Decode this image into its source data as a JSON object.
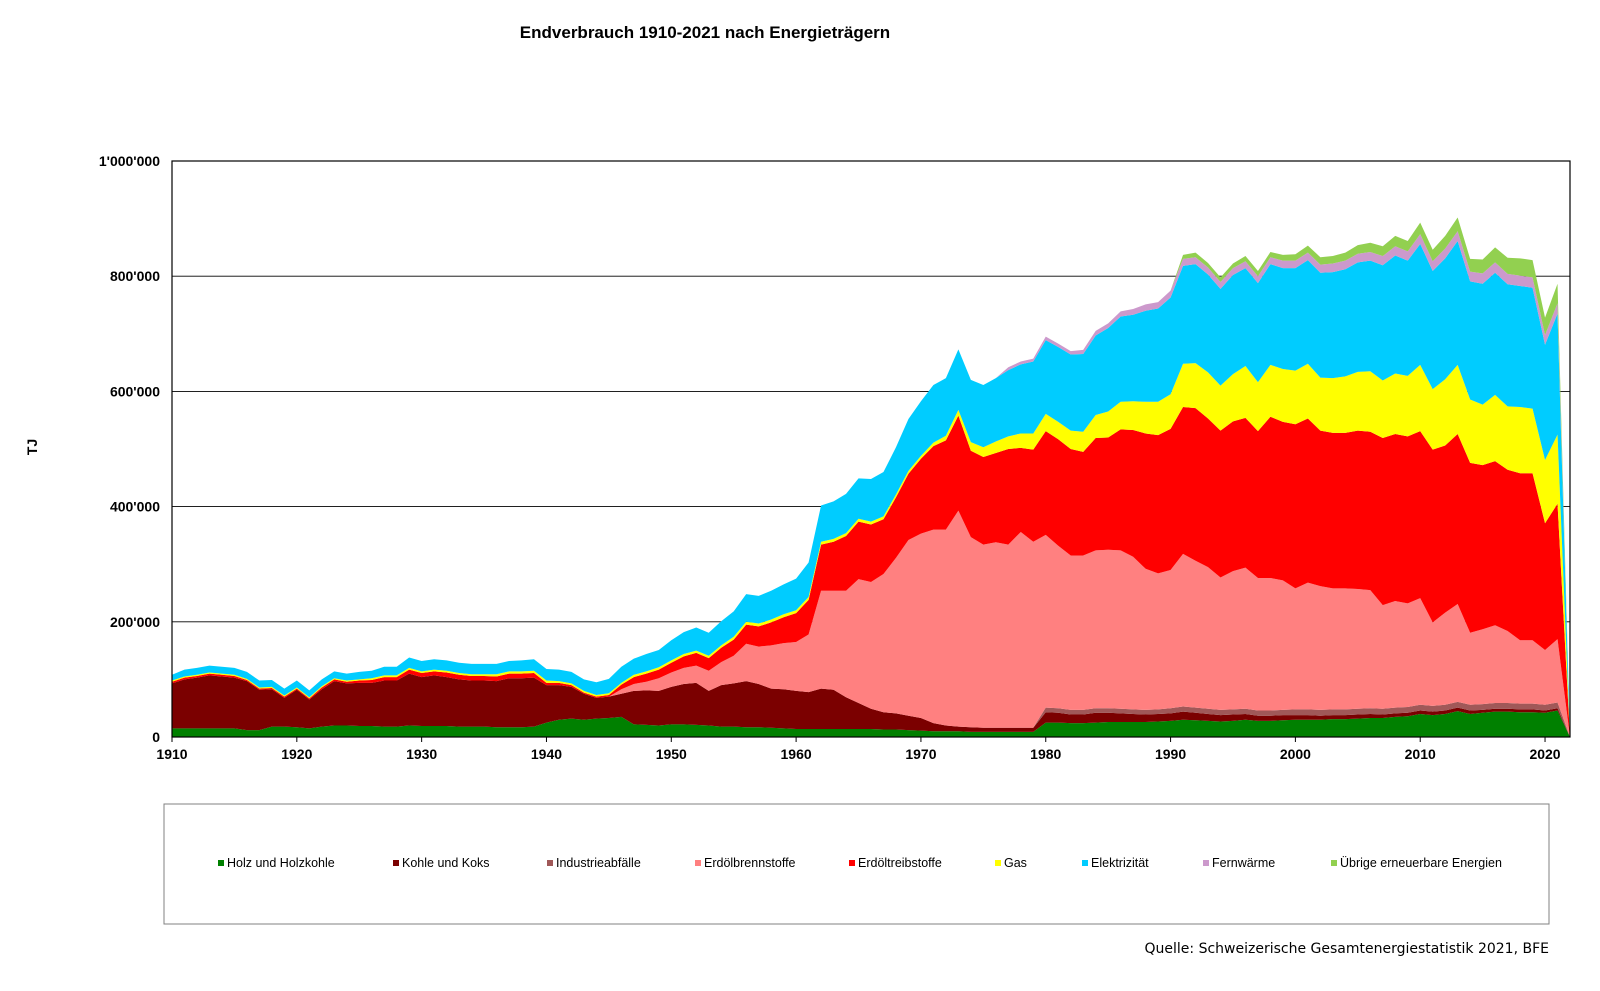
{
  "chart_data": {
    "type": "area",
    "stacked": true,
    "title": "Endverbrauch 1910-2021 nach Energieträgern",
    "ylabel": "TJ",
    "xlabel": "",
    "source": "Quelle: Schweizerische Gesamtenergiestatistik 2021, BFE",
    "ylim": [
      0,
      1000000
    ],
    "xlim": [
      1910,
      2022
    ],
    "ytick_values": [
      0,
      200000,
      400000,
      600000,
      800000,
      1000000
    ],
    "ytick_labels": [
      "0",
      "200'000",
      "400'000",
      "600'000",
      "800'000",
      "1'000'000"
    ],
    "xticks": [
      "1910",
      "1920",
      "1930",
      "1940",
      "1950",
      "1960",
      "1970",
      "1980",
      "1990",
      "2000",
      "2010",
      "2020"
    ],
    "grid": "horizontal",
    "legend_position": "bottom",
    "x": [
      1910,
      1911,
      1912,
      1913,
      1914,
      1915,
      1916,
      1917,
      1918,
      1919,
      1920,
      1921,
      1922,
      1923,
      1924,
      1925,
      1926,
      1927,
      1928,
      1929,
      1930,
      1931,
      1932,
      1933,
      1934,
      1935,
      1936,
      1937,
      1938,
      1939,
      1940,
      1941,
      1942,
      1943,
      1944,
      1945,
      1946,
      1947,
      1948,
      1949,
      1950,
      1951,
      1952,
      1953,
      1954,
      1955,
      1956,
      1957,
      1958,
      1959,
      1960,
      1961,
      1962,
      1963,
      1964,
      1965,
      1966,
      1967,
      1968,
      1969,
      1970,
      1971,
      1972,
      1973,
      1974,
      1975,
      1976,
      1977,
      1978,
      1979,
      1980,
      1981,
      1982,
      1983,
      1984,
      1985,
      1986,
      1987,
      1988,
      1989,
      1990,
      1991,
      1992,
      1993,
      1994,
      1995,
      1996,
      1997,
      1998,
      1999,
      2000,
      2001,
      2002,
      2003,
      2004,
      2005,
      2006,
      2007,
      2008,
      2009,
      2010,
      2011,
      2012,
      2013,
      2014,
      2015,
      2016,
      2017,
      2018,
      2019,
      2020,
      2021,
      2022
    ],
    "series": [
      {
        "name": "Holz und  Holzkohle",
        "color": "#008000",
        "values": [
          15000,
          15000,
          15000,
          15000,
          15000,
          15000,
          12000,
          12000,
          18000,
          18000,
          17000,
          15000,
          18000,
          20000,
          20000,
          19000,
          19000,
          18000,
          18000,
          20000,
          19000,
          19000,
          19000,
          18000,
          18000,
          18000,
          17000,
          17000,
          17000,
          18000,
          25000,
          30000,
          32000,
          30000,
          32000,
          33000,
          35000,
          22000,
          21000,
          20000,
          22000,
          22000,
          21000,
          20000,
          18000,
          18000,
          17000,
          17000,
          16000,
          15000,
          14000,
          14000,
          14000,
          14000,
          14000,
          14000,
          14000,
          13000,
          13000,
          12000,
          11000,
          10000,
          10000,
          10000,
          9000,
          9000,
          9000,
          9000,
          9000,
          9000,
          25000,
          25000,
          24000,
          24000,
          25000,
          26000,
          26000,
          26000,
          26000,
          27000,
          28000,
          30000,
          29000,
          28000,
          27000,
          28000,
          30000,
          28000,
          28000,
          29000,
          30000,
          30000,
          30000,
          31000,
          31000,
          32000,
          33000,
          33000,
          35000,
          36000,
          40000,
          38000,
          40000,
          45000,
          40000,
          42000,
          44000,
          44000,
          43000,
          43000,
          42000,
          46000,
          0
        ]
      },
      {
        "name": "Kohle  und Koks",
        "color": "#7b0000",
        "values": [
          78000,
          85000,
          88000,
          92000,
          90000,
          88000,
          85000,
          70000,
          65000,
          50000,
          65000,
          50000,
          65000,
          77000,
          73000,
          75000,
          75000,
          80000,
          80000,
          90000,
          85000,
          88000,
          85000,
          82000,
          80000,
          80000,
          80000,
          85000,
          85000,
          85000,
          65000,
          60000,
          55000,
          45000,
          36000,
          37000,
          40000,
          58000,
          60000,
          60000,
          65000,
          70000,
          73000,
          60000,
          72000,
          75000,
          80000,
          75000,
          68000,
          68000,
          66000,
          64000,
          70000,
          68000,
          55000,
          45000,
          35000,
          30000,
          28000,
          25000,
          22000,
          14000,
          10000,
          8000,
          8000,
          7000,
          7000,
          7000,
          7000,
          7000,
          18000,
          17000,
          15000,
          15000,
          17000,
          16000,
          15000,
          14000,
          13000,
          13000,
          13000,
          14000,
          13000,
          12000,
          11000,
          11000,
          10000,
          9000,
          9000,
          9000,
          8000,
          8000,
          7000,
          7000,
          7000,
          7000,
          7000,
          6000,
          6000,
          6000,
          6000,
          6000,
          6000,
          6000,
          6000,
          5000,
          5000,
          5000,
          5000,
          5000,
          4000,
          4000,
          0
        ]
      },
      {
        "name": "Industrieabfälle",
        "color": "#a05858",
        "values": [
          0,
          0,
          0,
          0,
          0,
          0,
          0,
          0,
          0,
          0,
          0,
          0,
          0,
          0,
          0,
          0,
          0,
          0,
          0,
          0,
          0,
          0,
          0,
          0,
          0,
          0,
          0,
          0,
          0,
          0,
          0,
          0,
          0,
          0,
          0,
          0,
          0,
          0,
          0,
          0,
          0,
          0,
          0,
          0,
          0,
          0,
          0,
          0,
          0,
          0,
          0,
          0,
          0,
          0,
          0,
          0,
          0,
          0,
          0,
          0,
          0,
          0,
          0,
          0,
          0,
          0,
          0,
          0,
          0,
          0,
          8000,
          8000,
          8000,
          8000,
          8000,
          8000,
          8000,
          8000,
          8000,
          8000,
          9000,
          9000,
          9000,
          9000,
          9000,
          9000,
          9000,
          9000,
          9000,
          9000,
          10000,
          10000,
          10000,
          10000,
          10000,
          10000,
          10000,
          10000,
          10000,
          10000,
          10000,
          10000,
          10000,
          10000,
          10000,
          10000,
          10000,
          10000,
          10000,
          10000,
          10000,
          10000,
          0
        ]
      },
      {
        "name": "Erdölbrennstoffe",
        "color": "#ff8080",
        "values": [
          0,
          0,
          0,
          0,
          0,
          0,
          0,
          0,
          0,
          0,
          0,
          0,
          0,
          0,
          0,
          0,
          0,
          0,
          0,
          0,
          0,
          0,
          0,
          0,
          0,
          0,
          0,
          0,
          0,
          0,
          0,
          0,
          0,
          0,
          0,
          0,
          8000,
          12000,
          15000,
          22000,
          25000,
          28000,
          30000,
          35000,
          40000,
          48000,
          65000,
          65000,
          75000,
          80000,
          85000,
          100000,
          170000,
          172000,
          185000,
          215000,
          220000,
          240000,
          270000,
          305000,
          320000,
          336000,
          340000,
          375000,
          330000,
          318000,
          322000,
          318000,
          340000,
          323000,
          300000,
          282000,
          268000,
          268000,
          274000,
          275000,
          275000,
          265000,
          245000,
          236000,
          240000,
          265000,
          255000,
          246000,
          230000,
          240000,
          245000,
          230000,
          230000,
          225000,
          210000,
          220000,
          215000,
          210000,
          210000,
          208000,
          205000,
          180000,
          185000,
          180000,
          185000,
          145000,
          160000,
          170000,
          125000,
          130000,
          135000,
          125000,
          110000,
          110000,
          95000,
          110000,
          0
        ]
      },
      {
        "name": "Erdöltreibstoffe",
        "color": "#ff0000",
        "values": [
          3000,
          3000,
          3000,
          3000,
          3000,
          3000,
          2000,
          2000,
          2000,
          2000,
          2000,
          2000,
          3000,
          3000,
          3000,
          4000,
          5000,
          6000,
          6000,
          7000,
          7000,
          7000,
          8000,
          8000,
          8000,
          8000,
          8000,
          8000,
          8000,
          8000,
          4000,
          4000,
          3000,
          2000,
          2000,
          3000,
          8000,
          12000,
          14000,
          15000,
          17000,
          20000,
          22000,
          22000,
          25000,
          28000,
          33000,
          35000,
          40000,
          45000,
          50000,
          60000,
          80000,
          85000,
          95000,
          100000,
          100000,
          95000,
          105000,
          115000,
          130000,
          145000,
          155000,
          165000,
          150000,
          152000,
          155000,
          166000,
          146000,
          160000,
          180000,
          185000,
          185000,
          180000,
          195000,
          195000,
          210000,
          220000,
          235000,
          240000,
          245000,
          255000,
          265000,
          258000,
          255000,
          260000,
          260000,
          255000,
          280000,
          275000,
          285000,
          285000,
          270000,
          270000,
          270000,
          275000,
          275000,
          290000,
          290000,
          290000,
          290000,
          300000,
          290000,
          295000,
          295000,
          285000,
          285000,
          280000,
          290000,
          290000,
          220000,
          235000,
          0
        ]
      },
      {
        "name": "Gas",
        "color": "#ffff00",
        "values": [
          2000,
          2000,
          2000,
          2000,
          2000,
          2000,
          2000,
          2000,
          2000,
          2000,
          2000,
          2000,
          2000,
          2000,
          2000,
          2000,
          3000,
          3000,
          3000,
          3000,
          3000,
          3000,
          3000,
          3000,
          3000,
          3000,
          4000,
          4000,
          4000,
          4000,
          4000,
          3000,
          3000,
          3000,
          3000,
          3000,
          3000,
          4000,
          4000,
          4000,
          4000,
          4000,
          4000,
          4000,
          4000,
          5000,
          5000,
          5000,
          5000,
          5000,
          5000,
          5000,
          5000,
          5000,
          5000,
          5000,
          5000,
          5000,
          5000,
          5000,
          5000,
          6000,
          8000,
          10000,
          15000,
          17000,
          20000,
          22000,
          25000,
          28000,
          30000,
          30000,
          32000,
          35000,
          40000,
          45000,
          48000,
          50000,
          55000,
          58000,
          60000,
          75000,
          78000,
          80000,
          78000,
          82000,
          90000,
          85000,
          90000,
          92000,
          93000,
          95000,
          92000,
          95000,
          98000,
          102000,
          105000,
          100000,
          105000,
          105000,
          115000,
          105000,
          115000,
          120000,
          110000,
          105000,
          115000,
          110000,
          115000,
          112000,
          110000,
          120000,
          0
        ]
      },
      {
        "name": "Elektrizität",
        "color": "#00ccff",
        "values": [
          10000,
          12000,
          12000,
          12000,
          12000,
          12000,
          12000,
          12000,
          12000,
          12000,
          12000,
          12000,
          12000,
          12000,
          12000,
          13000,
          13000,
          15000,
          15000,
          18000,
          18000,
          18000,
          18000,
          18000,
          18000,
          18000,
          18000,
          18000,
          19000,
          20000,
          20000,
          20000,
          20000,
          20000,
          22000,
          25000,
          28000,
          28000,
          30000,
          30000,
          35000,
          38000,
          40000,
          40000,
          42000,
          44000,
          48000,
          48000,
          50000,
          52000,
          55000,
          60000,
          63000,
          65000,
          68000,
          70000,
          74000,
          77000,
          82000,
          90000,
          95000,
          100000,
          100000,
          105000,
          108000,
          108000,
          110000,
          115000,
          120000,
          125000,
          128000,
          130000,
          132000,
          135000,
          138000,
          145000,
          148000,
          150000,
          158000,
          162000,
          168000,
          170000,
          172000,
          170000,
          168000,
          172000,
          170000,
          172000,
          175000,
          175000,
          178000,
          180000,
          182000,
          184000,
          186000,
          190000,
          192000,
          200000,
          205000,
          200000,
          210000,
          205000,
          210000,
          215000,
          205000,
          210000,
          212000,
          212000,
          210000,
          210000,
          200000,
          210000,
          0
        ]
      },
      {
        "name": "Fernwärme",
        "color": "#cc99cc",
        "values": [
          0,
          0,
          0,
          0,
          0,
          0,
          0,
          0,
          0,
          0,
          0,
          0,
          0,
          0,
          0,
          0,
          0,
          0,
          0,
          0,
          0,
          0,
          0,
          0,
          0,
          0,
          0,
          0,
          0,
          0,
          0,
          0,
          0,
          0,
          0,
          0,
          0,
          0,
          0,
          0,
          0,
          0,
          0,
          0,
          0,
          0,
          0,
          0,
          0,
          0,
          0,
          0,
          0,
          0,
          0,
          0,
          0,
          0,
          0,
          0,
          0,
          0,
          0,
          0,
          0,
          0,
          0,
          5000,
          5000,
          5000,
          6000,
          6000,
          6000,
          7000,
          8000,
          8000,
          9000,
          10000,
          11000,
          11000,
          12000,
          12000,
          12000,
          12000,
          12000,
          12000,
          12000,
          12000,
          12000,
          13000,
          13000,
          13000,
          14000,
          15000,
          15000,
          15000,
          15000,
          16000,
          16000,
          16000,
          17000,
          17000,
          17000,
          17000,
          17000,
          18000,
          18000,
          18000,
          18000,
          18000,
          17000,
          18000,
          0
        ]
      },
      {
        "name": "Übrige erneuerbare Energien",
        "color": "#92d050",
        "values": [
          0,
          0,
          0,
          0,
          0,
          0,
          0,
          0,
          0,
          0,
          0,
          0,
          0,
          0,
          0,
          0,
          0,
          0,
          0,
          0,
          0,
          0,
          0,
          0,
          0,
          0,
          0,
          0,
          0,
          0,
          0,
          0,
          0,
          0,
          0,
          0,
          0,
          0,
          0,
          0,
          0,
          0,
          0,
          0,
          0,
          0,
          0,
          0,
          0,
          0,
          0,
          0,
          0,
          0,
          0,
          0,
          0,
          0,
          0,
          0,
          0,
          0,
          0,
          0,
          0,
          0,
          0,
          0,
          0,
          0,
          0,
          0,
          0,
          0,
          0,
          0,
          0,
          0,
          0,
          0,
          0,
          7000,
          8000,
          8000,
          8000,
          8000,
          9000,
          9000,
          9000,
          10000,
          11000,
          12000,
          13000,
          13000,
          14000,
          15000,
          16000,
          17000,
          18000,
          18000,
          20000,
          20000,
          22000,
          24000,
          22000,
          24000,
          26000,
          28000,
          30000,
          30000,
          30000,
          34000,
          0
        ]
      }
    ]
  }
}
